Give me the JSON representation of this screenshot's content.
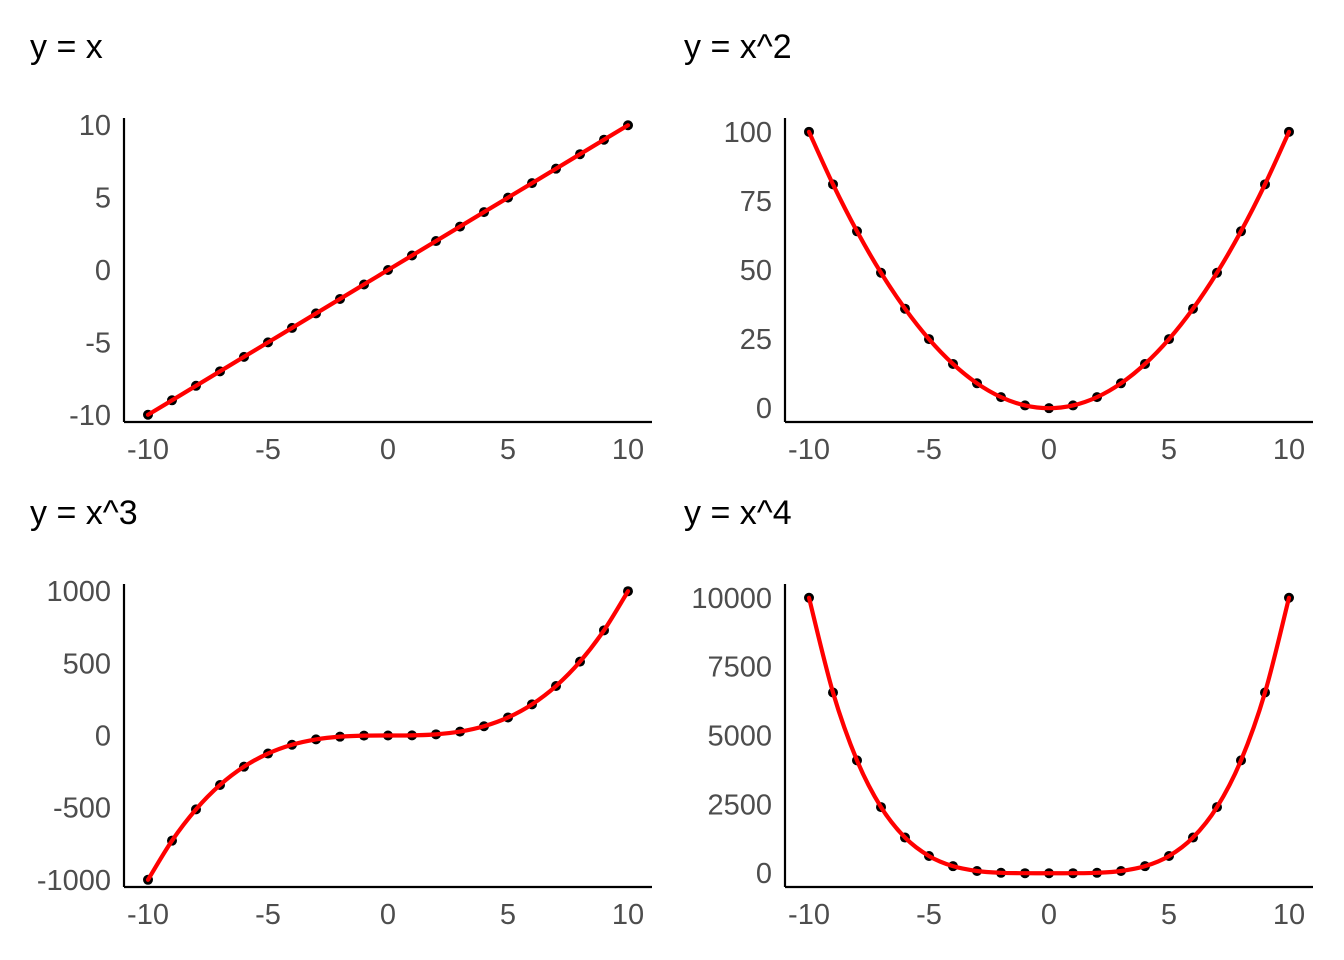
{
  "chart_data": [
    {
      "type": "line",
      "title": "y = x",
      "xlabel": "",
      "ylabel": "",
      "x": [
        -10,
        -9,
        -8,
        -7,
        -6,
        -5,
        -4,
        -3,
        -2,
        -1,
        0,
        1,
        2,
        3,
        4,
        5,
        6,
        7,
        8,
        9,
        10
      ],
      "y": [
        -10,
        -9,
        -8,
        -7,
        -6,
        -5,
        -4,
        -3,
        -2,
        -1,
        0,
        1,
        2,
        3,
        4,
        5,
        6,
        7,
        8,
        9,
        10
      ],
      "xticks": [
        -10,
        -5,
        0,
        5,
        10
      ],
      "yticks": [
        -10,
        -5,
        0,
        5,
        10
      ],
      "xlim": [
        -11,
        11
      ],
      "ylim": [
        -10.5,
        10.5
      ],
      "grid": false,
      "points": true,
      "line_color": "#ff0000",
      "point_color": "#000000"
    },
    {
      "type": "line",
      "title": "y = x^2",
      "xlabel": "",
      "ylabel": "",
      "x": [
        -10,
        -9,
        -8,
        -7,
        -6,
        -5,
        -4,
        -3,
        -2,
        -1,
        0,
        1,
        2,
        3,
        4,
        5,
        6,
        7,
        8,
        9,
        10
      ],
      "y": [
        100,
        81,
        64,
        49,
        36,
        25,
        16,
        9,
        4,
        1,
        0,
        1,
        4,
        9,
        16,
        25,
        36,
        49,
        64,
        81,
        100
      ],
      "xticks": [
        -10,
        -5,
        0,
        5,
        10
      ],
      "yticks": [
        0,
        25,
        50,
        75,
        100
      ],
      "xlim": [
        -11,
        11
      ],
      "ylim": [
        -5,
        105
      ],
      "grid": false,
      "points": true,
      "line_color": "#ff0000",
      "point_color": "#000000"
    },
    {
      "type": "line",
      "title": "y = x^3",
      "xlabel": "",
      "ylabel": "",
      "x": [
        -10,
        -9,
        -8,
        -7,
        -6,
        -5,
        -4,
        -3,
        -2,
        -1,
        0,
        1,
        2,
        3,
        4,
        5,
        6,
        7,
        8,
        9,
        10
      ],
      "y": [
        -1000,
        -729,
        -512,
        -343,
        -216,
        -125,
        -64,
        -27,
        -8,
        -1,
        0,
        1,
        8,
        27,
        64,
        125,
        216,
        343,
        512,
        729,
        1000
      ],
      "xticks": [
        -10,
        -5,
        0,
        5,
        10
      ],
      "yticks": [
        -1000,
        -500,
        0,
        500,
        1000
      ],
      "xlim": [
        -11,
        11
      ],
      "ylim": [
        -1050,
        1050
      ],
      "grid": false,
      "points": true,
      "line_color": "#ff0000",
      "point_color": "#000000"
    },
    {
      "type": "line",
      "title": "y = x^4",
      "xlabel": "",
      "ylabel": "",
      "x": [
        -10,
        -9,
        -8,
        -7,
        -6,
        -5,
        -4,
        -3,
        -2,
        -1,
        0,
        1,
        2,
        3,
        4,
        5,
        6,
        7,
        8,
        9,
        10
      ],
      "y": [
        10000,
        6561,
        4096,
        2401,
        1296,
        625,
        256,
        81,
        16,
        1,
        0,
        1,
        16,
        81,
        256,
        625,
        1296,
        2401,
        4096,
        6561,
        10000
      ],
      "xticks": [
        -10,
        -5,
        0,
        5,
        10
      ],
      "yticks": [
        0,
        2500,
        5000,
        7500,
        10000
      ],
      "xlim": [
        -11,
        11
      ],
      "ylim": [
        -500,
        10500
      ],
      "grid": false,
      "points": true,
      "line_color": "#ff0000",
      "point_color": "#000000"
    }
  ]
}
